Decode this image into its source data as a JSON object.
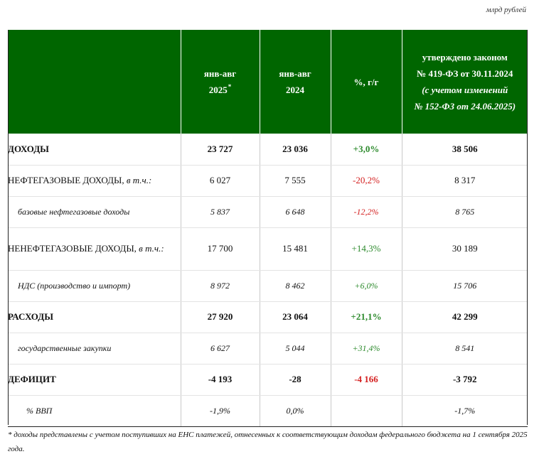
{
  "units": "млрд рублей",
  "header": {
    "col1_line1": "янв-авг",
    "col1_line2": "2025",
    "col1_marker": "*",
    "col2_line1": "янв-авг",
    "col2_line2": "2024",
    "col3": "%, г/г",
    "col4_line1": "утверждено законом",
    "col4_line2": "№ 419-ФЗ от 30.11.2024",
    "col4_line3": "(с учетом изменений",
    "col4_line4": "№ 152-ФЗ от 24.06.2025)"
  },
  "rows": [
    {
      "label": "ДОХОДЫ",
      "label_suffix": "",
      "v2025": "23 727",
      "v2024": "23 036",
      "pct": "+3,0%",
      "law": "38 506"
    },
    {
      "label": "НЕФТЕГАЗОВЫЕ ДОХОДЫ, ",
      "label_suffix": "в т.ч.:",
      "v2025": "6 027",
      "v2024": "7 555",
      "pct": "-20,2%",
      "law": "8 317"
    },
    {
      "label": "базовые нефтегазовые доходы",
      "label_suffix": "",
      "v2025": "5 837",
      "v2024": "6 648",
      "pct": "-12,2%",
      "law": "8 765"
    },
    {
      "label": "НЕНЕФТЕГАЗОВЫЕ ДОХОДЫ, ",
      "label_suffix": "в т.ч.:",
      "v2025": "17 700",
      "v2024": "15 481",
      "pct": "+14,3%",
      "law": "30 189"
    },
    {
      "label": "НДС (производство и импорт)",
      "label_suffix": "",
      "v2025": "8 972",
      "v2024": "8 462",
      "pct": "+6,0%",
      "law": "15 706"
    },
    {
      "label": "РАСХОДЫ",
      "label_suffix": "",
      "v2025": "27 920",
      "v2024": "23 064",
      "pct": "+21,1%",
      "law": "42 299"
    },
    {
      "label": "государственные закупки",
      "label_suffix": "",
      "v2025": "6 627",
      "v2024": "5 044",
      "pct": "+31,4%",
      "law": "8 541"
    },
    {
      "label": "ДЕФИЦИТ",
      "label_suffix": "",
      "v2025": "-4 193",
      "v2024": "-28",
      "pct": "-4 166",
      "law": "-3 792"
    },
    {
      "label": "% ВВП",
      "label_suffix": "",
      "v2025": "-1,9%",
      "v2024": "0,0%",
      "pct": "",
      "law": "-1,7%"
    }
  ],
  "footnote": "* доходы представлены с учетом поступивших на ЕНС платежей, отнесенных к соответствующим доходам федерального бюджета на 1 сентября 2025 года.",
  "colors": {
    "header_bg": "#006600",
    "positive": "#2e8b2e",
    "negative": "#d42020"
  }
}
